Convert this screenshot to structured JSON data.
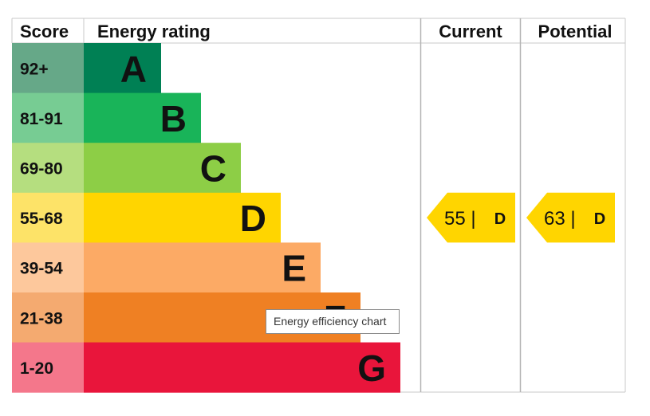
{
  "chart_data": {
    "type": "bar",
    "columns": {
      "score": "Score",
      "rating": "Energy rating",
      "current": "Current",
      "potential": "Potential"
    },
    "bands": [
      {
        "score": "92+",
        "letter": "A",
        "score_color": "#66a888",
        "bar_color": "#008054"
      },
      {
        "score": "81-91",
        "letter": "B",
        "score_color": "#77cc93",
        "bar_color": "#19b459"
      },
      {
        "score": "69-80",
        "letter": "C",
        "score_color": "#b5de7f",
        "bar_color": "#8dce46"
      },
      {
        "score": "55-68",
        "letter": "D",
        "score_color": "#fde368",
        "bar_color": "#ffd500"
      },
      {
        "score": "39-54",
        "letter": "E",
        "score_color": "#fdc89c",
        "bar_color": "#fcaa65"
      },
      {
        "score": "21-38",
        "letter": "F",
        "score_color": "#f4aa70",
        "bar_color": "#ef8023"
      },
      {
        "score": "1-20",
        "letter": "G",
        "score_color": "#f4778b",
        "bar_color": "#e9153b"
      }
    ],
    "current": {
      "value": 55,
      "letter": "D",
      "color": "#ffd500"
    },
    "potential": {
      "value": 63,
      "letter": "D",
      "color": "#ffd500"
    }
  },
  "tooltip": {
    "text": "Energy efficiency chart"
  }
}
